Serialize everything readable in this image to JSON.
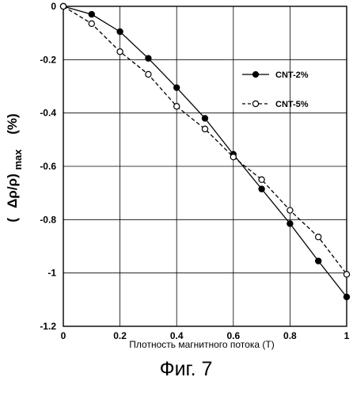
{
  "chart_data": {
    "type": "line",
    "xlabel": "Плотность магнитного потока (T)",
    "ylabel_left": "(",
    "ylabel_main": "Δρ/ρ)",
    "ylabel_sub": "max",
    "ylabel_unit": "(%)",
    "xlim": [
      0,
      1
    ],
    "ylim": [
      -1.2,
      0
    ],
    "x_ticks": [
      "0",
      "0.2",
      "0.4",
      "0.6",
      "0.8",
      "1"
    ],
    "y_ticks": [
      "0",
      "-0.2",
      "-0.4",
      "-0.6",
      "-0.8",
      "-1",
      "-1.2"
    ],
    "grid": true,
    "legend_position": "upper right inside plot",
    "series": [
      {
        "name": "CNT-2%",
        "marker": "filled-circle",
        "line": "solid",
        "x": [
          0,
          0.1,
          0.2,
          0.3,
          0.4,
          0.5,
          0.6,
          0.7,
          0.8,
          0.9,
          1.0
        ],
        "y": [
          0,
          -0.03,
          -0.095,
          -0.195,
          -0.305,
          -0.42,
          -0.555,
          -0.685,
          -0.815,
          -0.955,
          -1.09
        ]
      },
      {
        "name": "CNT-5%",
        "marker": "open-circle",
        "line": "dashed",
        "x": [
          0,
          0.1,
          0.2,
          0.3,
          0.4,
          0.5,
          0.6,
          0.7,
          0.8,
          0.9,
          1.0
        ],
        "y": [
          0,
          -0.065,
          -0.17,
          -0.255,
          -0.375,
          -0.46,
          -0.565,
          -0.65,
          -0.765,
          -0.865,
          -1.005
        ]
      }
    ]
  },
  "caption": "Фиг. 7"
}
